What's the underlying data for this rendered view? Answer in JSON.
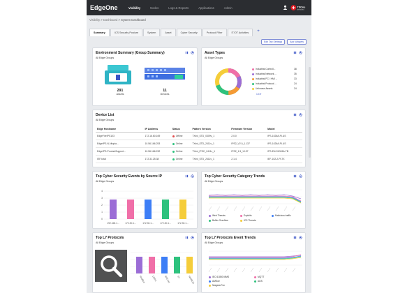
{
  "app": {
    "title": "EdgeOne",
    "nav": [
      "Visibility",
      "Nodes",
      "Logs & Reports",
      "Applications",
      "Admin"
    ],
    "active_nav": "Visibility",
    "brand_logo_text": "TXOne NETWORKS"
  },
  "breadcrumb": {
    "items": [
      "Visibility",
      "Dashboard",
      "System Dashboard"
    ]
  },
  "tabs": {
    "items": [
      "Summary",
      "ICS Security Posture",
      "System",
      "Asset",
      "Cyber Security",
      "Protocol Filter",
      "IT/OT Activities"
    ],
    "active": "Summary",
    "add_label": "+"
  },
  "actions": {
    "tab_settings": "Edit Tab Settings",
    "add_widgets": "Add Widgets"
  },
  "env_summary": {
    "title": "Environment Summary (Group Summary)",
    "subtitle": "All Edge Groups",
    "assets_count": "291",
    "assets_label": "Assets",
    "devices_count": "11",
    "devices_label": "Devices"
  },
  "asset_types": {
    "title": "Asset Types",
    "subtitle": "All Edge Groups",
    "legend": [
      {
        "label": "Industrial Controll...",
        "value": "38",
        "color": "#f06fa8"
      },
      {
        "label": "Industrial Network ...",
        "value": "35",
        "color": "#9b6dd6"
      },
      {
        "label": "Industrial PC / HMI ...",
        "value": "33",
        "color": "#f59a35"
      },
      {
        "label": "Industrial Protocol ...",
        "value": "24",
        "color": "#2ec27e"
      },
      {
        "label": "Unknown Assets",
        "value": "24",
        "color": "#f5cd3a"
      }
    ],
    "page_indicator": "1/4"
  },
  "device_list": {
    "title": "Device List",
    "subtitle": "All Edge Groups",
    "columns": [
      "Edge Hostname",
      "IP Address",
      "Status",
      "Pattern Version",
      "Firmware Version",
      "Model"
    ],
    "rows": [
      {
        "hostname": "EdgeFireIPS103",
        "ip": "172.16.60.169",
        "status": "Offline",
        "status_color": "#e24b4b",
        "pattern": "TXed_STD_0309v_1",
        "firmware": "2.0.0",
        "model": "IPS-1026A-PLUS"
      },
      {
        "hostname": "EdgeIPS-N-Ntopia...",
        "ip": "10.56.166.253",
        "status": "Online",
        "status_color": "#2ec27e",
        "pattern": "TXed_STD_2411v_1",
        "firmware": "IPS2_V2.0_1.137",
        "model": "IPS-1026A-PLUS"
      },
      {
        "hostname": "EdgeIPS-ProductSupport...",
        "ip": "10.56.166.232",
        "status": "Online",
        "status_color": "#2ec27e",
        "pattern": "TXed_IPSC_2411v_1",
        "firmware": "IPS2_1.5_1.137",
        "model": "IPS-EN-S1026A-TB"
      },
      {
        "hostname": "IEF-total",
        "ip": "172.31.25.38",
        "status": "Online",
        "status_color": "#2ec27e",
        "pattern": "TXed_STD_2411v_1",
        "firmware": "2.1.4",
        "model": "IEF-102-2-PLTX"
      }
    ]
  },
  "cyber_by_source": {
    "title": "Top Cyber Security Events by Source IP",
    "subtitle": "All Edge Groups",
    "x_labels": [
      "192.168.1...",
      "172.30.1...",
      "172.30.1...",
      "172.30.1...",
      "172.30.1..."
    ],
    "bar_colors": [
      "#9b6dd6",
      "#f06fa8",
      "#3d7ef6",
      "#2ec27e",
      "#f5cd3a"
    ]
  },
  "cyber_category": {
    "title": "Top Cyber Security Category Trends",
    "subtitle": "All Edge Groups",
    "legend": [
      {
        "label": "Web Threats",
        "color": "#9b6dd6"
      },
      {
        "label": "Exploits",
        "color": "#f06fa8"
      },
      {
        "label": "Malicious traffic",
        "color": "#3d7ef6"
      },
      {
        "label": "Buffer Overflow",
        "color": "#2ec27e"
      },
      {
        "label": "ICS Threats",
        "color": "#f5cd3a"
      }
    ]
  },
  "l7_protocols": {
    "title": "Top L7 Protocols",
    "subtitle": "All Edge Groups",
    "x_labels": [
      "Modbus",
      "DNP3",
      "BACnet",
      "S7",
      "NetBIOS"
    ],
    "bar_colors": [
      "#9b6dd6",
      "#f06fa8",
      "#3d7ef6",
      "#2ec27e",
      "#f5cd3a"
    ]
  },
  "l7_trends": {
    "title": "Top L7 Protocols Event Trends",
    "subtitle": "All Edge Groups",
    "legend": [
      {
        "label": "IEC 61850 MMS",
        "color": "#9b6dd6"
      },
      {
        "label": "MQTT",
        "color": "#f06fa8"
      },
      {
        "label": "AMSoe",
        "color": "#3d7ef6"
      },
      {
        "label": "ADS",
        "color": "#2ec27e"
      },
      {
        "label": "Niagara Fox",
        "color": "#f5cd3a"
      }
    ]
  },
  "colors": {
    "accent": "#3b55c6",
    "header": "#2b2d31",
    "bg": "#e9ebee"
  },
  "icons": [
    "user-icon",
    "pause-icon",
    "gear-icon",
    "search-icon"
  ]
}
